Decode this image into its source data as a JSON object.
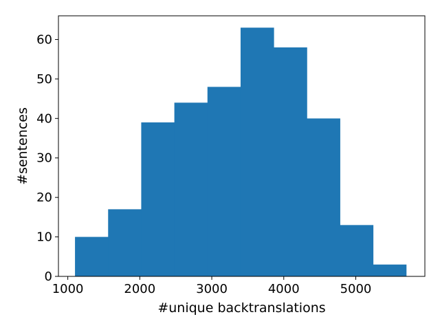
{
  "chart_data": {
    "type": "bar",
    "title": "",
    "xlabel": "#unique backtranslations",
    "ylabel": "#sentences",
    "xlim": [
      870,
      5960
    ],
    "ylim": [
      0,
      66
    ],
    "bar_color": "#1f77b4",
    "grid": false,
    "legend": "none",
    "bins": [
      {
        "x0": 1100,
        "x1": 1560,
        "count": 10
      },
      {
        "x0": 1560,
        "x1": 2020,
        "count": 17
      },
      {
        "x0": 2020,
        "x1": 2480,
        "count": 39
      },
      {
        "x0": 2480,
        "x1": 2940,
        "count": 44
      },
      {
        "x0": 2940,
        "x1": 3400,
        "count": 48
      },
      {
        "x0": 3400,
        "x1": 3860,
        "count": 63
      },
      {
        "x0": 3860,
        "x1": 4320,
        "count": 58
      },
      {
        "x0": 4320,
        "x1": 4780,
        "count": 40
      },
      {
        "x0": 4780,
        "x1": 5240,
        "count": 13
      },
      {
        "x0": 5240,
        "x1": 5700,
        "count": 3
      }
    ],
    "x_ticks": [
      {
        "value": 1000,
        "label": "1000"
      },
      {
        "value": 2000,
        "label": "2000"
      },
      {
        "value": 3000,
        "label": "3000"
      },
      {
        "value": 4000,
        "label": "4000"
      },
      {
        "value": 5000,
        "label": "5000"
      }
    ],
    "y_ticks": [
      {
        "value": 0,
        "label": "0"
      },
      {
        "value": 10,
        "label": "10"
      },
      {
        "value": 20,
        "label": "20"
      },
      {
        "value": 30,
        "label": "30"
      },
      {
        "value": 40,
        "label": "40"
      },
      {
        "value": 50,
        "label": "50"
      },
      {
        "value": 60,
        "label": "60"
      }
    ]
  }
}
